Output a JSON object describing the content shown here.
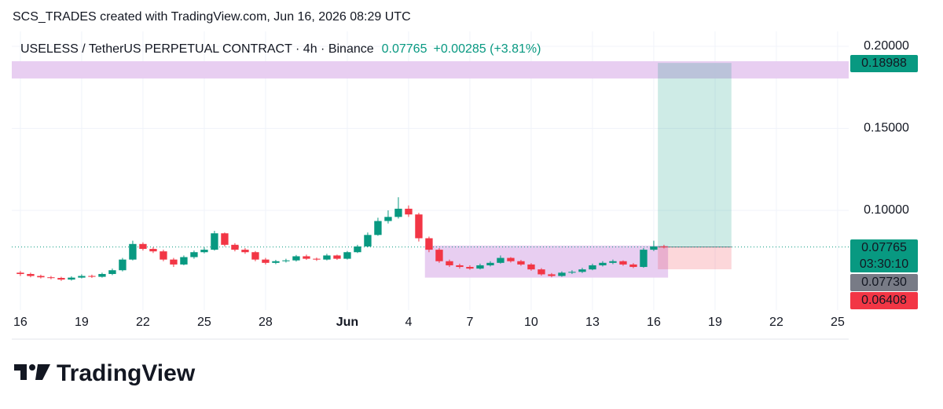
{
  "header": "SCS_TRADES created with TradingView.com, Jun 16, 2026 08:29 UTC",
  "footer": {
    "logo": "TradingView"
  },
  "chart_data": {
    "type": "candlestick",
    "title": "USELESS / TetherUS PERPETUAL CONTRACT · 4h · Binance",
    "last_price": 0.07765,
    "change": "+0.00285 (+3.81%)",
    "countdown": "03:30:10",
    "price_marker": {
      "value": 0.0773,
      "label": "0.07730"
    },
    "up_color": "#089981",
    "down_color": "#f23645",
    "grid": true,
    "x": [
      0,
      0.5,
      1,
      1.5,
      2,
      2.5,
      3,
      3.5,
      4,
      4.5,
      5,
      5.5,
      6,
      6.5,
      7,
      7.5,
      8,
      8.5,
      9,
      9.5,
      10,
      10.5,
      11,
      11.5,
      12,
      12.5,
      13,
      13.5,
      14,
      14.5,
      15,
      15.5,
      16,
      16.5,
      17,
      17.5,
      18,
      18.5,
      19,
      19.5,
      20,
      20.5,
      21,
      21.5,
      22,
      22.5,
      23,
      23.5,
      24,
      24.5,
      25,
      25.5,
      26,
      26.5,
      27,
      27.5,
      28,
      28.5,
      29,
      29.5,
      30,
      30.5,
      31,
      31.5
    ],
    "open": [
      0.062,
      0.0612,
      0.06,
      0.0592,
      0.0588,
      0.0578,
      0.059,
      0.06,
      0.0595,
      0.0612,
      0.0635,
      0.07,
      0.0795,
      0.0765,
      0.075,
      0.07,
      0.067,
      0.0715,
      0.0745,
      0.076,
      0.086,
      0.079,
      0.076,
      0.0745,
      0.07,
      0.068,
      0.069,
      0.0695,
      0.072,
      0.0705,
      0.07,
      0.0725,
      0.0705,
      0.0745,
      0.078,
      0.085,
      0.0935,
      0.096,
      0.101,
      0.0975,
      0.083,
      0.076,
      0.069,
      0.0665,
      0.0655,
      0.0645,
      0.0665,
      0.068,
      0.071,
      0.069,
      0.067,
      0.064,
      0.061,
      0.06,
      0.062,
      0.0625,
      0.064,
      0.0665,
      0.068,
      0.069,
      0.067,
      0.0655,
      0.076,
      0.078
    ],
    "high": [
      0.063,
      0.062,
      0.0608,
      0.06,
      0.0595,
      0.0598,
      0.061,
      0.0608,
      0.062,
      0.0645,
      0.071,
      0.0815,
      0.0805,
      0.0775,
      0.076,
      0.071,
      0.0725,
      0.0755,
      0.0775,
      0.0875,
      0.0865,
      0.08,
      0.077,
      0.0752,
      0.071,
      0.0698,
      0.0705,
      0.0728,
      0.073,
      0.0712,
      0.0735,
      0.073,
      0.0752,
      0.079,
      0.0865,
      0.0955,
      0.1,
      0.108,
      0.103,
      0.0985,
      0.084,
      0.077,
      0.07,
      0.0675,
      0.0665,
      0.0675,
      0.069,
      0.0725,
      0.0715,
      0.0698,
      0.0678,
      0.0648,
      0.0618,
      0.0628,
      0.0635,
      0.065,
      0.0675,
      0.069,
      0.07,
      0.0695,
      0.0678,
      0.077,
      0.0815,
      0.079
    ],
    "low": [
      0.06,
      0.0592,
      0.0585,
      0.058,
      0.057,
      0.0572,
      0.0585,
      0.0588,
      0.059,
      0.0605,
      0.0628,
      0.0695,
      0.0755,
      0.074,
      0.069,
      0.0655,
      0.0665,
      0.0705,
      0.0738,
      0.0755,
      0.078,
      0.075,
      0.0735,
      0.069,
      0.067,
      0.0672,
      0.0682,
      0.0688,
      0.0698,
      0.0692,
      0.0695,
      0.0698,
      0.07,
      0.074,
      0.0775,
      0.0845,
      0.092,
      0.095,
      0.096,
      0.081,
      0.0745,
      0.068,
      0.0655,
      0.0645,
      0.0638,
      0.064,
      0.0658,
      0.0675,
      0.0682,
      0.0662,
      0.0632,
      0.0602,
      0.0592,
      0.0595,
      0.0612,
      0.0618,
      0.0635,
      0.0658,
      0.0672,
      0.0662,
      0.0648,
      0.065,
      0.0752,
      0.0768
    ],
    "close": [
      0.0612,
      0.06,
      0.0592,
      0.0588,
      0.0578,
      0.059,
      0.06,
      0.0595,
      0.0612,
      0.0635,
      0.07,
      0.0795,
      0.0765,
      0.075,
      0.07,
      0.067,
      0.0715,
      0.0745,
      0.076,
      0.086,
      0.079,
      0.076,
      0.0745,
      0.07,
      0.068,
      0.069,
      0.0695,
      0.072,
      0.0705,
      0.07,
      0.0725,
      0.0705,
      0.0745,
      0.078,
      0.085,
      0.0935,
      0.096,
      0.101,
      0.0975,
      0.083,
      0.076,
      0.069,
      0.0665,
      0.0655,
      0.0645,
      0.0665,
      0.068,
      0.071,
      0.069,
      0.067,
      0.064,
      0.061,
      0.06,
      0.062,
      0.0625,
      0.064,
      0.0665,
      0.068,
      0.069,
      0.067,
      0.0655,
      0.076,
      0.078,
      0.07765
    ],
    "xlim": [
      -0.42,
      40.54
    ],
    "xticks": [
      {
        "value": 0,
        "label": "16"
      },
      {
        "value": 3,
        "label": "19"
      },
      {
        "value": 6,
        "label": "22"
      },
      {
        "value": 9,
        "label": "25"
      },
      {
        "value": 12,
        "label": "28"
      },
      {
        "value": 16,
        "label": "Jun"
      },
      {
        "value": 19,
        "label": "4"
      },
      {
        "value": 22,
        "label": "7"
      },
      {
        "value": 25,
        "label": "10"
      },
      {
        "value": 28,
        "label": "13"
      },
      {
        "value": 31,
        "label": "16"
      },
      {
        "value": 34,
        "label": "19"
      },
      {
        "value": 37,
        "label": "22"
      },
      {
        "value": 40,
        "label": "25"
      }
    ],
    "ylim": [
      0.0392,
      0.2091
    ],
    "yticks": [
      {
        "value": 0.2,
        "label": "0.20000"
      },
      {
        "value": 0.15,
        "label": "0.15000"
      },
      {
        "value": 0.1,
        "label": "0.10000"
      }
    ],
    "zones": [
      {
        "y": [
          0.1804,
          0.1909
        ],
        "color": "#e6c9f0"
      },
      {
        "x": [
          19.8,
          31.7
        ],
        "y": [
          0.059,
          0.0785
        ],
        "color": "#e6c9f0"
      }
    ],
    "position": {
      "x": [
        31.2,
        34.8
      ],
      "entry": 0.07765,
      "target": 0.18988,
      "stop": 0.06408
    }
  }
}
